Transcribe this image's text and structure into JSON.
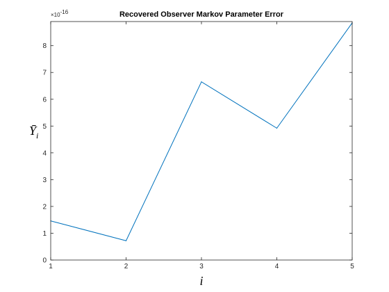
{
  "chart_data": {
    "type": "line",
    "title": "Recovered Observer Markov Parameter Error",
    "xlabel": "i",
    "ylabel": "Ȳ",
    "ylabel_sub": "i",
    "y_exponent_label": "×10",
    "y_exponent_power": "-16",
    "x": [
      1,
      2,
      3,
      4,
      5
    ],
    "series": [
      {
        "values": [
          1.46,
          0.72,
          6.65,
          4.92,
          8.85
        ],
        "color": "#0072bd"
      }
    ],
    "xlim": [
      1,
      5
    ],
    "ylim": [
      0,
      8.9
    ],
    "xticks": [
      1,
      2,
      3,
      4,
      5
    ],
    "yticks": [
      0,
      1,
      2,
      3,
      4,
      5,
      6,
      7,
      8
    ],
    "xtick_labels": [
      "1",
      "2",
      "3",
      "4",
      "5"
    ],
    "ytick_labels": [
      "0",
      "1",
      "2",
      "3",
      "4",
      "5",
      "6",
      "7",
      "8"
    ],
    "grid": false,
    "legend": "none"
  }
}
